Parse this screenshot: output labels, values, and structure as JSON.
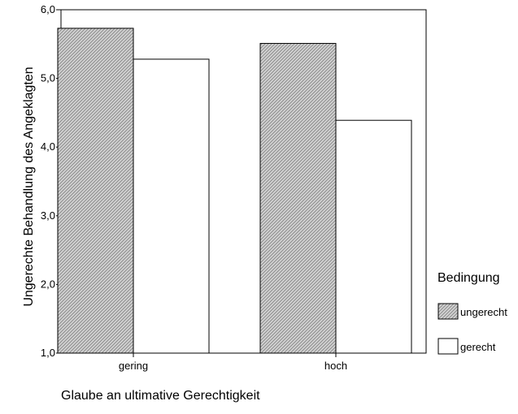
{
  "chart_data": {
    "type": "bar",
    "xlabel": "Glaube an ultimative Gerechtigkeit",
    "ylabel": "Ungerechte Behandlung des Angeklagten",
    "categories": [
      "gering",
      "hoch"
    ],
    "ylim": [
      1.0,
      6.0
    ],
    "yticks": [
      "1,0",
      "2,0",
      "3,0",
      "4,0",
      "5,0",
      "6,0"
    ],
    "series": [
      {
        "name": "ungerecht",
        "values": [
          5.73,
          5.51
        ],
        "fill": "hatched"
      },
      {
        "name": "gerecht",
        "values": [
          5.28,
          4.39
        ],
        "fill": "white"
      }
    ],
    "legend": {
      "title": "Bedingung",
      "placement": "right"
    },
    "grid": false
  }
}
